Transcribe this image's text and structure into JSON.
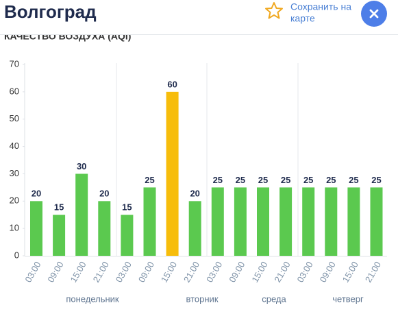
{
  "header": {
    "title": "Волгоград",
    "save": [
      "Сохранить на",
      "карте"
    ]
  },
  "chart_data": {
    "type": "bar",
    "title": "КАЧЕСТВО ВОЗДУХА (AQI)",
    "categories": [
      "03:00",
      "09:00",
      "15:00",
      "21:00",
      "03:00",
      "09:00",
      "15:00",
      "21:00",
      "03:00",
      "09:00",
      "15:00",
      "21:00",
      "03:00",
      "09:00",
      "15:00",
      "21:00"
    ],
    "values": [
      20,
      15,
      30,
      20,
      15,
      25,
      60,
      20,
      25,
      25,
      25,
      25,
      25,
      25,
      25,
      25
    ],
    "colors": [
      "#5bc94f",
      "#5bc94f",
      "#5bc94f",
      "#5bc94f",
      "#5bc94f",
      "#5bc94f",
      "#f7bd0b",
      "#5bc94f",
      "#5bc94f",
      "#5bc94f",
      "#5bc94f",
      "#5bc94f",
      "#5bc94f",
      "#5bc94f",
      "#5bc94f",
      "#5bc94f"
    ],
    "days": [
      "понедельник",
      "вторник",
      "среда",
      "четверг"
    ],
    "ylim": [
      0,
      70
    ],
    "yticks": [
      0,
      10,
      20,
      30,
      40,
      50,
      60,
      70
    ]
  }
}
